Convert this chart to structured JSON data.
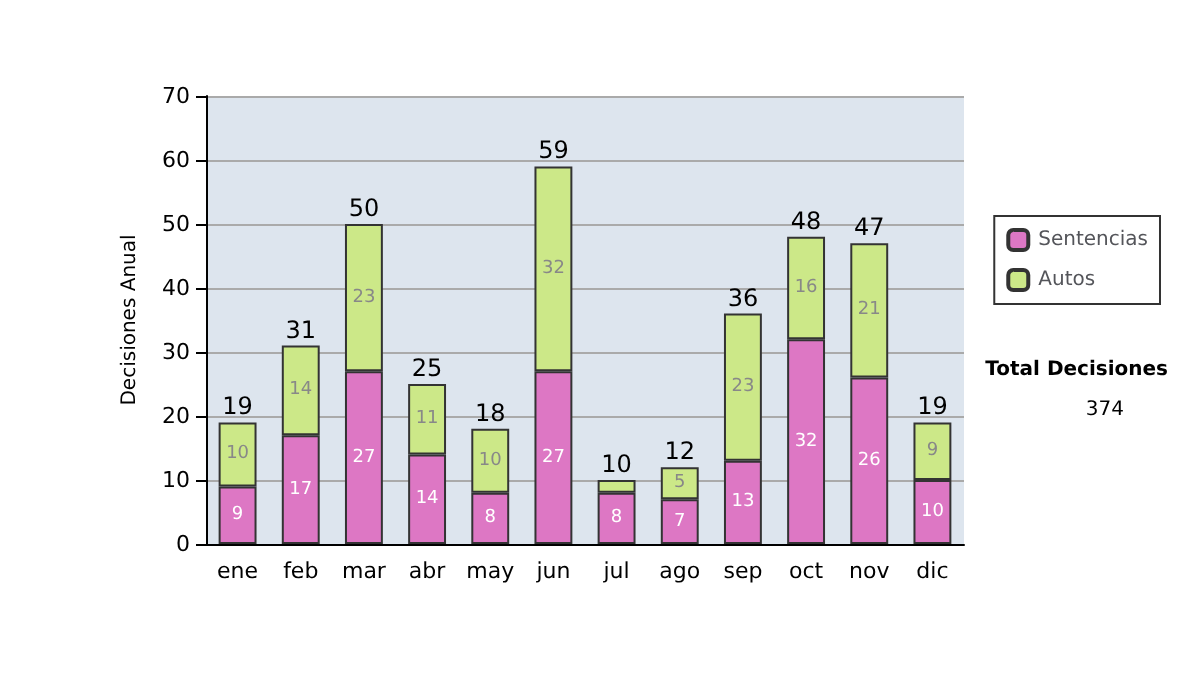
{
  "chart_data": {
    "type": "bar",
    "stacked": true,
    "ylabel": "Decisiones Anual",
    "categories": [
      "ene",
      "feb",
      "mar",
      "abr",
      "may",
      "jun",
      "jul",
      "ago",
      "sep",
      "oct",
      "nov",
      "dic"
    ],
    "series": [
      {
        "name": "Sentencias",
        "color": "#dd77c4",
        "values": [
          9,
          17,
          27,
          14,
          8,
          27,
          8,
          7,
          13,
          32,
          26,
          10
        ],
        "value_labels": [
          "9",
          "17",
          "27",
          "14",
          "8",
          "27",
          "8",
          "7",
          "13",
          "32",
          "26",
          "10"
        ]
      },
      {
        "name": "Autos",
        "color": "#cce888",
        "values": [
          10,
          14,
          23,
          11,
          10,
          32,
          2,
          5,
          23,
          16,
          21,
          9
        ],
        "value_labels": [
          "10",
          "14",
          "23",
          "11",
          "10",
          "32",
          null,
          "5",
          "23",
          "16",
          "21",
          "9"
        ]
      }
    ],
    "totals": [
      "19",
      "31",
      "50",
      "25",
      "18",
      "59",
      "10",
      "12",
      "36",
      "48",
      "47",
      "19"
    ],
    "ylim": [
      0,
      70
    ],
    "yticks": [
      0,
      10,
      20,
      30,
      40,
      50,
      60,
      70
    ],
    "grid": "y",
    "legend": "right",
    "annotations": [
      "Total Decisiones",
      "374"
    ]
  }
}
